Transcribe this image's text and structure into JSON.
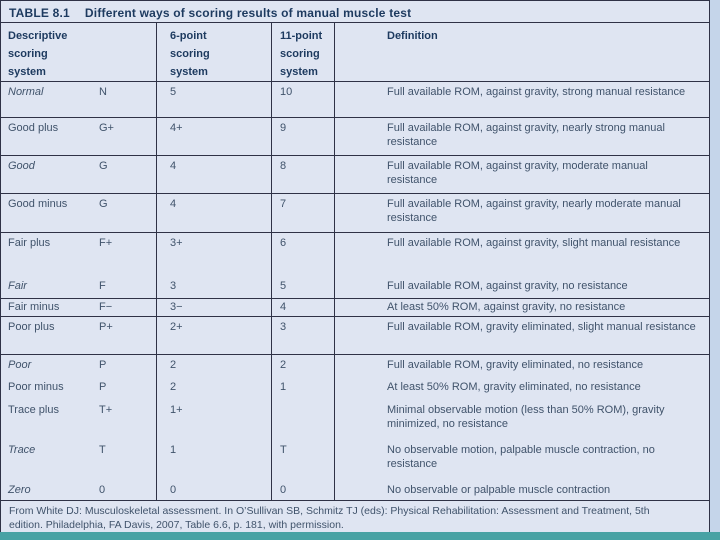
{
  "title": {
    "label": "TABLE 8.1",
    "text": "Different ways of scoring results of manual muscle test"
  },
  "header": {
    "descriptive": "Descriptive scoring system",
    "six_point": "6-point scoring system",
    "eleven_point": "11-point scoring system",
    "definition": "Definition"
  },
  "rows": [
    {
      "name": "Normal",
      "abbr": "N",
      "six": "5",
      "eleven": "10",
      "definition": "Full available ROM, against gravity, strong manual resistance"
    },
    {
      "name": "Good plus",
      "abbr": "G+",
      "six": "4+",
      "eleven": "9",
      "definition": "Full available ROM, against gravity, nearly strong manual resistance"
    },
    {
      "name": "Good",
      "abbr": "G",
      "six": "4",
      "eleven": "8",
      "definition": "Full available ROM, against gravity, moderate manual resistance"
    },
    {
      "name": "Good minus",
      "abbr": "G",
      "six": "4",
      "eleven": "7",
      "definition": "Full available ROM, against gravity, nearly moderate manual resistance"
    },
    {
      "name": "Fair plus",
      "abbr": "F+",
      "six": "3+",
      "eleven": "6",
      "definition": "Full available ROM, against gravity, slight manual resistance"
    },
    {
      "name": "Fair",
      "abbr": "F",
      "six": "3",
      "eleven": "5",
      "definition": "Full available ROM, against gravity, no resistance"
    },
    {
      "name": "Fair minus",
      "abbr": "F−",
      "six": "3−",
      "eleven": "4",
      "definition": "At least 50% ROM, against gravity, no resistance"
    },
    {
      "name": "Poor plus",
      "abbr": "P+",
      "six": "2+",
      "eleven": "3",
      "definition": "Full available ROM, gravity eliminated, slight manual resistance"
    },
    {
      "name": "Poor",
      "abbr": "P",
      "six": "2",
      "eleven": "2",
      "definition": "Full available ROM, gravity eliminated, no resistance"
    },
    {
      "name": "Poor minus",
      "abbr": "P",
      "six": "2",
      "eleven": "1",
      "definition": "At least 50% ROM, gravity eliminated, no resistance"
    },
    {
      "name": "Trace plus",
      "abbr": "T+",
      "six": "1+",
      "eleven": "",
      "definition": "Minimal observable motion (less than 50% ROM), gravity minimized, no resistance"
    },
    {
      "name": "Trace",
      "abbr": "T",
      "six": "1",
      "eleven": "T",
      "definition": "No observable motion, palpable muscle contraction, no resistance"
    },
    {
      "name": "Zero",
      "abbr": "0",
      "six": "0",
      "eleven": "0",
      "definition": "No observable or palpable muscle contraction"
    }
  ],
  "footer": {
    "citation": "From White DJ: Musculoskeletal assessment. In O’Sullivan SB, Schmitz TJ (eds): Physical Rehabilitation: Assessment and Treatment, 5th edition. Philadelphia, FA Davis, 2007, Table 6.6, p. 181, with permission."
  },
  "colors": {
    "table_bg": "#dfe5f2",
    "line": "#2f3246",
    "title_text": "#1d3a5f",
    "body_text": "#40536b",
    "right_strip": "#c5d5ea",
    "bottom_strip": "#48a2a4"
  }
}
